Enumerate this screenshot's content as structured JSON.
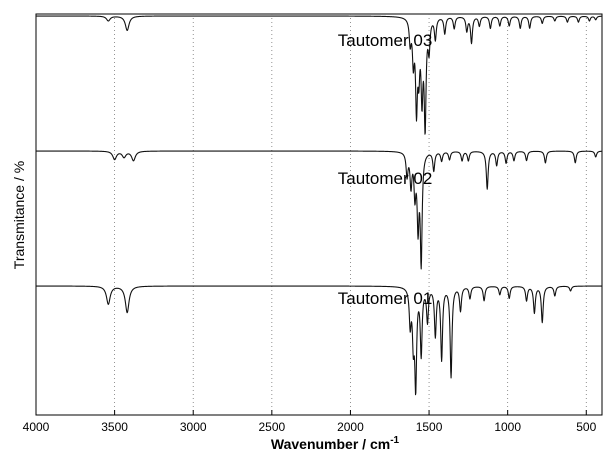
{
  "chart_data": {
    "type": "line",
    "xlabel": "Wavenumber / cm",
    "xlabel_superscript": "-1",
    "ylabel": "Transmitance / %",
    "xlim": [
      4000,
      400
    ],
    "x_reversed": true,
    "grid": "vertical dotted",
    "x_ticks": [
      4000,
      3500,
      3000,
      2500,
      2000,
      1500,
      1000,
      500
    ],
    "y_ticks_shown": false,
    "series": [
      {
        "name": "Tautomer 03",
        "offset": 2,
        "peaks": [
          [
            3540,
            0.04
          ],
          [
            3420,
            0.12
          ],
          [
            1620,
            0.2
          ],
          [
            1600,
            0.34
          ],
          [
            1580,
            0.72
          ],
          [
            1565,
            0.4
          ],
          [
            1545,
            0.62
          ],
          [
            1525,
            0.88
          ],
          [
            1500,
            0.25
          ],
          [
            1460,
            0.18
          ],
          [
            1400,
            0.14
          ],
          [
            1340,
            0.1
          ],
          [
            1260,
            0.12
          ],
          [
            1230,
            0.22
          ],
          [
            1180,
            0.08
          ],
          [
            1110,
            0.1
          ],
          [
            1050,
            0.08
          ],
          [
            990,
            0.08
          ],
          [
            920,
            0.1
          ],
          [
            860,
            0.1
          ],
          [
            780,
            0.06
          ],
          [
            700,
            0.04
          ],
          [
            620,
            0.05
          ],
          [
            550,
            0.05
          ],
          [
            480,
            0.04
          ],
          [
            440,
            0.03
          ]
        ]
      },
      {
        "name": "Tautomer 02",
        "offset": 1,
        "peaks": [
          [
            3500,
            0.07
          ],
          [
            3440,
            0.05
          ],
          [
            3380,
            0.08
          ],
          [
            1640,
            0.2
          ],
          [
            1615,
            0.28
          ],
          [
            1590,
            0.34
          ],
          [
            1570,
            0.6
          ],
          [
            1550,
            0.92
          ],
          [
            1470,
            0.16
          ],
          [
            1420,
            0.08
          ],
          [
            1370,
            0.07
          ],
          [
            1290,
            0.08
          ],
          [
            1250,
            0.08
          ],
          [
            1130,
            0.32
          ],
          [
            1070,
            0.12
          ],
          [
            1010,
            0.1
          ],
          [
            960,
            0.08
          ],
          [
            880,
            0.08
          ],
          [
            760,
            0.1
          ],
          [
            570,
            0.1
          ],
          [
            440,
            0.05
          ]
        ]
      },
      {
        "name": "Tautomer 01",
        "offset": 0,
        "peaks": [
          [
            3540,
            0.15
          ],
          [
            3420,
            0.22
          ],
          [
            1620,
            0.3
          ],
          [
            1600,
            0.42
          ],
          [
            1585,
            0.8
          ],
          [
            1550,
            0.55
          ],
          [
            1510,
            0.28
          ],
          [
            1460,
            0.4
          ],
          [
            1420,
            0.6
          ],
          [
            1360,
            0.75
          ],
          [
            1300,
            0.2
          ],
          [
            1240,
            0.1
          ],
          [
            1150,
            0.12
          ],
          [
            1050,
            0.07
          ],
          [
            990,
            0.1
          ],
          [
            880,
            0.12
          ],
          [
            830,
            0.22
          ],
          [
            780,
            0.3
          ],
          [
            700,
            0.08
          ],
          [
            600,
            0.04
          ]
        ]
      }
    ]
  }
}
